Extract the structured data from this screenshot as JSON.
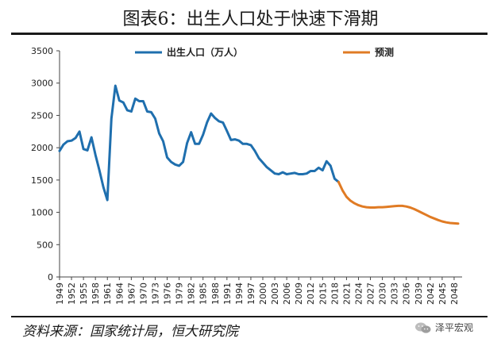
{
  "title": "图表6：出生人口处于快速下滑期",
  "source": "资料来源：国家统计局，恒大研究院",
  "brand": {
    "label": "泽平宏观",
    "icon": "wechat-icon"
  },
  "colors": {
    "actual": "#1f6fae",
    "forecast": "#e07b24",
    "text": "#222222"
  },
  "chart_data": {
    "type": "line",
    "ylim": [
      0,
      3500
    ],
    "yticks": [
      0,
      500,
      1000,
      1500,
      2000,
      2500,
      3000,
      3500
    ],
    "xticks": [
      "1949",
      "1952",
      "1955",
      "1958",
      "1961",
      "1964",
      "1967",
      "1970",
      "1973",
      "1976",
      "1979",
      "1982",
      "1985",
      "1988",
      "1991",
      "1994",
      "1997",
      "2000",
      "2003",
      "2006",
      "2009",
      "2012",
      "2015",
      "2018",
      "2021",
      "2024",
      "2027",
      "2030",
      "2033",
      "2036",
      "2039",
      "2042",
      "2045",
      "2048"
    ],
    "grid": false,
    "legend": "top",
    "series": [
      {
        "name": "出生人口（万人）",
        "color": "#1f6fae",
        "x": [
          1949,
          1950,
          1951,
          1952,
          1953,
          1954,
          1955,
          1956,
          1957,
          1958,
          1959,
          1960,
          1961,
          1962,
          1963,
          1964,
          1965,
          1966,
          1967,
          1968,
          1969,
          1970,
          1971,
          1972,
          1973,
          1974,
          1975,
          1976,
          1977,
          1978,
          1979,
          1980,
          1981,
          1982,
          1983,
          1984,
          1985,
          1986,
          1987,
          1988,
          1989,
          1990,
          1991,
          1992,
          1993,
          1994,
          1995,
          1996,
          1997,
          1998,
          1999,
          2000,
          2001,
          2002,
          2003,
          2004,
          2005,
          2006,
          2007,
          2008,
          2009,
          2010,
          2011,
          2012,
          2013,
          2014,
          2015,
          2016,
          2017,
          2018,
          2019
        ],
        "values": [
          1950,
          2050,
          2100,
          2110,
          2150,
          2250,
          1980,
          1960,
          2160,
          1890,
          1650,
          1390,
          1190,
          2450,
          2960,
          2730,
          2700,
          2580,
          2560,
          2760,
          2720,
          2720,
          2560,
          2550,
          2450,
          2220,
          2100,
          1850,
          1780,
          1740,
          1720,
          1780,
          2070,
          2240,
          2060,
          2060,
          2200,
          2390,
          2530,
          2460,
          2410,
          2390,
          2260,
          2120,
          2130,
          2110,
          2060,
          2060,
          2040,
          1950,
          1840,
          1770,
          1700,
          1650,
          1600,
          1590,
          1620,
          1590,
          1600,
          1610,
          1590,
          1590,
          1600,
          1640,
          1640,
          1690,
          1650,
          1790,
          1720,
          1520,
          1470
        ]
      },
      {
        "name": "预测",
        "color": "#e07b24",
        "x": [
          2019,
          2020,
          2021,
          2022,
          2023,
          2024,
          2025,
          2026,
          2027,
          2028,
          2029,
          2030,
          2031,
          2032,
          2033,
          2034,
          2035,
          2036,
          2037,
          2038,
          2039,
          2040,
          2041,
          2042,
          2043,
          2044,
          2045,
          2046,
          2047,
          2048,
          2049
        ],
        "values": [
          1470,
          1340,
          1240,
          1180,
          1140,
          1110,
          1090,
          1080,
          1075,
          1075,
          1080,
          1080,
          1085,
          1090,
          1095,
          1100,
          1100,
          1090,
          1075,
          1050,
          1020,
          990,
          960,
          930,
          905,
          880,
          860,
          845,
          835,
          830,
          825
        ]
      }
    ]
  }
}
